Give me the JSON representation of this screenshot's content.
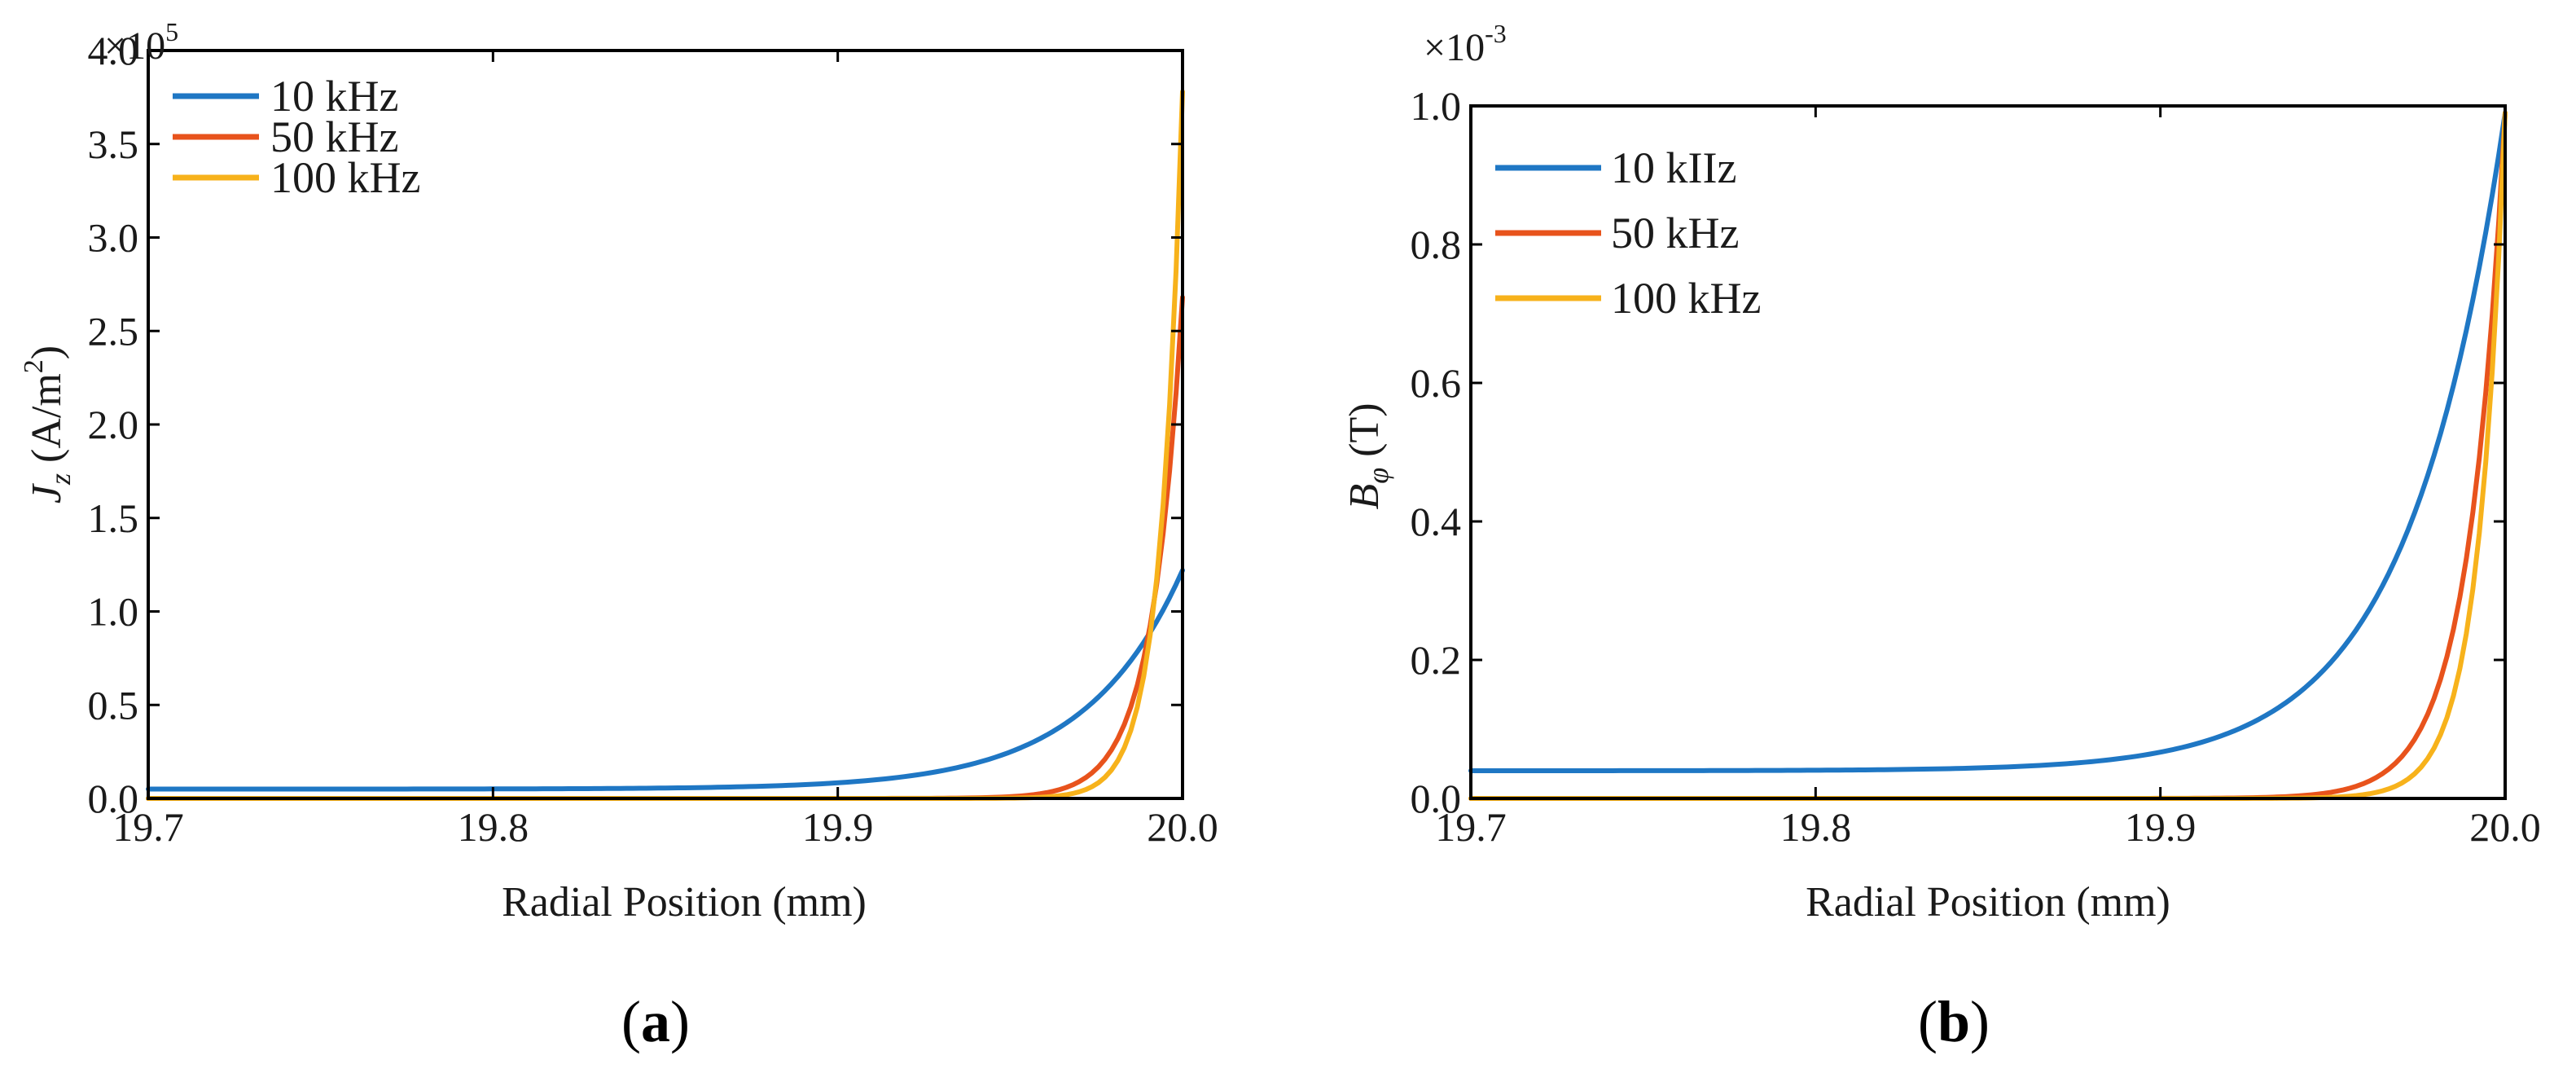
{
  "chart_data": [
    {
      "id": "a",
      "type": "line",
      "panel_label": "a",
      "xlabel": "Radial Position (mm)",
      "ylabel": {
        "symbol": "J",
        "subscript": "z",
        "unit_prefix": " (A/m",
        "unit_sup": "2",
        "unit_suffix": ")"
      },
      "multiplier": {
        "prefix": "×10",
        "exponent": "5"
      },
      "xlim": [
        19.7,
        20.0
      ],
      "ylim": [
        0,
        4.0
      ],
      "xticks": [
        19.7,
        19.8,
        19.9,
        20.0
      ],
      "xtick_labels": [
        "19.7",
        "19.8",
        "19.9",
        "20.0"
      ],
      "yticks": [
        0,
        0.5,
        1.0,
        1.5,
        2.0,
        2.5,
        3.0,
        3.5,
        4.0
      ],
      "ytick_labels": [
        "0.0",
        "0.5",
        "1.0",
        "1.5",
        "2.0",
        "2.5",
        "3.0",
        "3.5",
        "4.0"
      ],
      "grid": false,
      "legend_position": "top-left",
      "series": [
        {
          "name": "10 kHz",
          "color": "#1f77c4",
          "x0": 19.7,
          "x1": 20.0,
          "y0": 0.05,
          "y1": 1.22,
          "shape": 10.65
        },
        {
          "name": "50 kHz",
          "color": "#e8531c",
          "x0": 19.7,
          "x1": 20.0,
          "y0": 0.0001,
          "y1": 2.68,
          "shape": 34.0
        },
        {
          "name": "100 kHz",
          "color": "#f7b21b",
          "x0": 19.7,
          "x1": 20.0,
          "y0": 0.0,
          "y1": 3.78,
          "shape": 46.8
        }
      ]
    },
    {
      "id": "b",
      "type": "line",
      "panel_label": "b",
      "xlabel": "Radial Position (mm)",
      "ylabel": {
        "symbol": "B",
        "subscript": "φ",
        "unit_prefix": " (T)",
        "unit_sup": "",
        "unit_suffix": ""
      },
      "multiplier": {
        "prefix": "×10",
        "exponent": "-3"
      },
      "xlim": [
        19.7,
        20.0
      ],
      "ylim": [
        0,
        1.0
      ],
      "xticks": [
        19.7,
        19.8,
        19.9,
        20.0
      ],
      "xtick_labels": [
        "19.7",
        "19.8",
        "19.9",
        "20.0"
      ],
      "yticks": [
        0,
        0.2,
        0.4,
        0.6,
        0.8,
        1.0
      ],
      "ytick_labels": [
        "0.0",
        "0.2",
        "0.4",
        "0.6",
        "0.8",
        "1.0"
      ],
      "grid": false,
      "legend_position": "top-left",
      "series": [
        {
          "name": "10 kIIz",
          "color": "#1f77c4",
          "x0": 19.7,
          "x1": 20.0,
          "y0": 0.04,
          "y1": 0.99,
          "shape": 10.7
        },
        {
          "name": "50 kHz",
          "color": "#e8531c",
          "x0": 19.7,
          "x1": 20.0,
          "y0": 0.0,
          "y1": 0.99,
          "shape": 28.0
        },
        {
          "name": "100 kHz",
          "color": "#f7b21b",
          "x0": 19.7,
          "x1": 20.0,
          "y0": 0.0,
          "y1": 0.99,
          "shape": 38.0
        }
      ]
    }
  ]
}
